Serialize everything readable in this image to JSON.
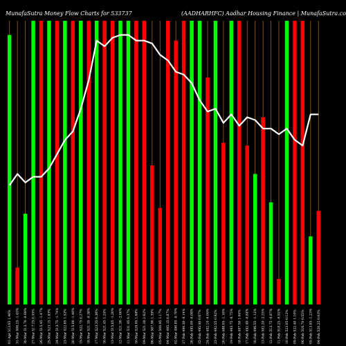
{
  "chart_data": {
    "type": "bar",
    "title": "MunafaSutra Money Flow Charts for 533737",
    "subtitle": "(AADHARHFC) Aadhar Housing Finance | MunafaSutra.com",
    "categories": [
      "01-Apr-2026",
      "31-Mar-2026",
      "30-Mar-2026",
      "27-Mar-2026",
      "26-Mar-2026",
      "25-Mar-2026",
      "24-Mar-2026",
      "23-Mar-2026",
      "20-Mar-2026",
      "19-Mar-2026",
      "18-Mar-2026",
      "17-Mar-2026",
      "16-Mar-2026",
      "13-Mar-2026",
      "12-Mar-2026",
      "11-Mar-2026",
      "10-Mar-2026",
      "09-Mar-2026",
      "06-Mar-2026",
      "05-Mar-2026",
      "04-Mar-2026",
      "02-Mar-2026",
      "27-Feb-2026",
      "26-Feb-2026",
      "25-Feb-2026",
      "24-Feb-2026",
      "23-Feb-2026",
      "20-Feb-2026",
      "19-Feb-2026",
      "18-Feb-2026",
      "17-Feb-2026",
      "16-Feb-2026",
      "13-Feb-2026",
      "12-Feb-2026",
      "11-Feb-2026",
      "10-Feb-2026",
      "09-Feb-2026",
      "06-Feb-2026",
      "05-Feb-2026",
      "04-Feb-2026"
    ],
    "x_tick_labels": [
      "01-Apr 513.65 1.46%",
      "31-Mar 506.25 -1.45%",
      "30-Mar 513.70 -0.69%",
      "27-Mar 517.25 0.35%",
      "26-Mar 515.45 -1.47%",
      "25-Mar 523.15 1.83%",
      "24-Mar 513.75 -1.74%",
      "23-Mar 522.85 1.52%",
      "20-Mar 515.00 -1.48%",
      "19-Mar 522.75 0.27%",
      "18-Mar 521.35 -0.38%",
      "17-Mar 523.35 0.36%",
      "16-Mar 521.45 1.24%",
      "13-Mar 515.05 -1.20%",
      "12-Mar 521.30 -2.00%",
      "11-Mar 531.95 0.37%",
      "10-Mar 529.95 1.68%",
      "09-Mar 521.20 2.62%",
      "06-Mar 507.90 1.39%",
      "05-Mar 500.95 1.17%",
      "04-Mar 495.15 0.87%",
      "02-Mar 490.85 -0.70%",
      "27-Feb 494.30 -0.14%",
      "26-Feb 495.00 -0.08%",
      "25-Feb 495.40 0.67%",
      "24-Feb 492.10 -0.09%",
      "23-Feb 492.55 0.92%",
      "20-Feb 488.05 -1.16%",
      "19-Feb 493.75 -0.75%",
      "18-Feb 497.50 1.04%",
      "17-Feb 492.40 -0.84%",
      "16-Feb 496.55 -1.12%",
      "13-Feb 502.20 -2.25%",
      "12-Feb 513.75 -0.87%",
      "11-Feb 518.25 -0.92%",
      "10-Feb 523.05 0.12%",
      "09-Feb 522.40 1.10%",
      "06-Feb 516.70 0.55%",
      "05-Feb 513.85 -1.23%",
      "04-Feb 520.25 0.03%"
    ],
    "series": [
      {
        "kind": "bars",
        "values": [
          95,
          13,
          32,
          100,
          100,
          100,
          100,
          100,
          100,
          100,
          100,
          100,
          100,
          100,
          100,
          100,
          100,
          100,
          49,
          34,
          100,
          93,
          100,
          100,
          100,
          80,
          100,
          57,
          100,
          100,
          56,
          46,
          66,
          36,
          9,
          100,
          100,
          100,
          24,
          33
        ],
        "colors": [
          "green",
          "red",
          "green",
          "green",
          "red",
          "green",
          "red",
          "green",
          "red",
          "green",
          "red",
          "green",
          "red",
          "red",
          "green",
          "green",
          "red",
          "red",
          "red",
          "red",
          "red",
          "red",
          "red",
          "green",
          "green",
          "red",
          "green",
          "red",
          "green",
          "red",
          "red",
          "green",
          "red",
          "green",
          "red",
          "green",
          "red",
          "red",
          "green",
          "red"
        ]
      },
      {
        "kind": "line",
        "values": [
          42,
          46,
          43,
          45,
          45,
          48,
          53,
          58,
          61,
          69,
          79,
          93,
          91,
          94,
          95,
          95,
          93,
          93,
          92,
          88,
          86,
          82,
          81,
          78,
          72,
          68,
          69,
          64,
          67,
          63,
          66,
          65,
          62,
          62,
          60,
          62,
          58,
          56,
          67,
          67
        ]
      }
    ],
    "ylim": [
      0,
      100
    ],
    "colors": {
      "green": "#00ff00",
      "red": "#ff0000",
      "line": "#ffffff",
      "grid": "#a0641e",
      "background": "#000000"
    }
  }
}
